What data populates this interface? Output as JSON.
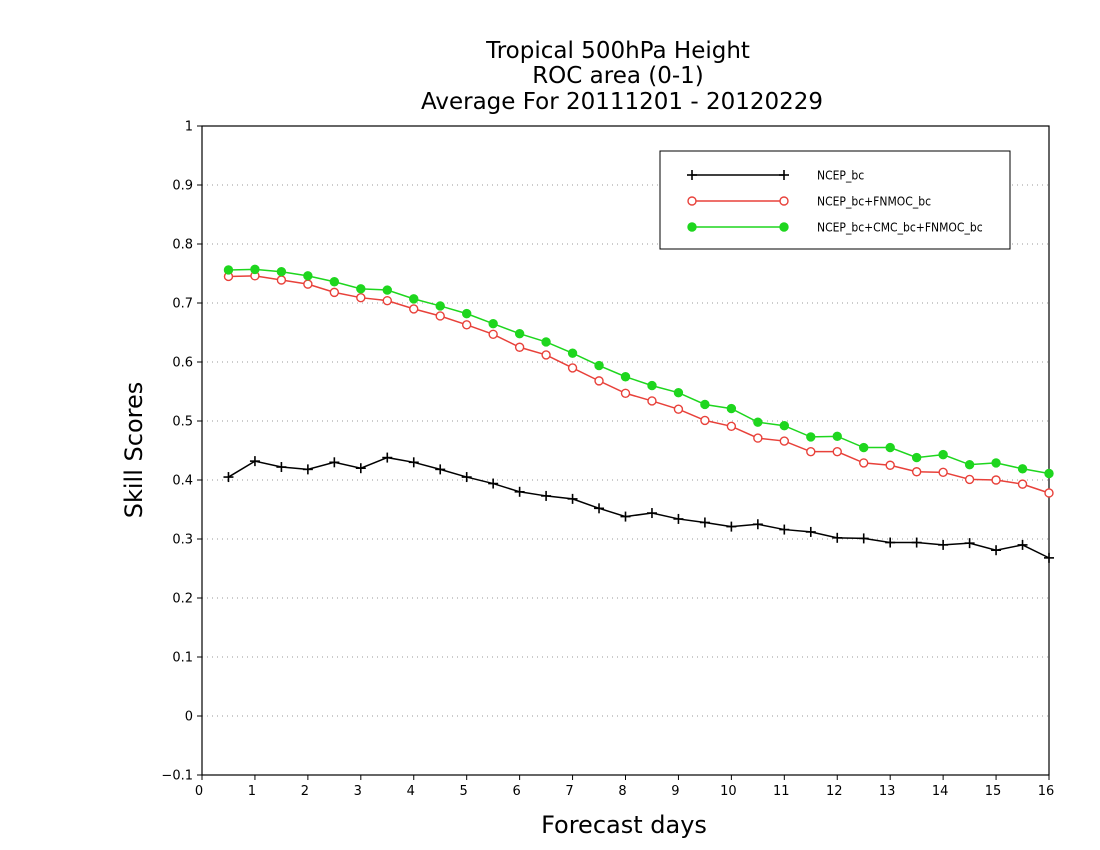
{
  "chart_data": {
    "type": "line",
    "title": [
      "Tropical 500hPa Height",
      "ROC area (0-1)",
      "Average For 20111201 - 20120229"
    ],
    "xlabel": "Forecast days",
    "ylabel": "Skill Scores",
    "xlim": [
      0,
      16
    ],
    "ylim": [
      -0.1,
      1
    ],
    "xticks": [
      0,
      1,
      2,
      3,
      4,
      5,
      6,
      7,
      8,
      9,
      10,
      11,
      12,
      13,
      14,
      15,
      16
    ],
    "yticks": [
      -0.1,
      0,
      0.1,
      0.2,
      0.3,
      0.4,
      0.5,
      0.6,
      0.7,
      0.8,
      0.9,
      1
    ],
    "ytick_labels": [
      "−0.1",
      "0",
      "0.1",
      "0.2",
      "0.3",
      "0.4",
      "0.5",
      "0.6",
      "0.7",
      "0.8",
      "0.9",
      "1"
    ],
    "grid": true,
    "legend_position": "top-right",
    "x": [
      0.5,
      1,
      1.5,
      2,
      2.5,
      3,
      3.5,
      4,
      4.5,
      5,
      5.5,
      6,
      6.5,
      7,
      7.5,
      8,
      8.5,
      9,
      9.5,
      10,
      10.5,
      11,
      11.5,
      12,
      12.5,
      13,
      13.5,
      14,
      14.5,
      15,
      15.5,
      16
    ],
    "series": [
      {
        "name": "NCEP_bc",
        "color": "#000000",
        "marker": "plus",
        "values": [
          0.405,
          0.432,
          0.422,
          0.418,
          0.43,
          0.42,
          0.438,
          0.43,
          0.418,
          0.405,
          0.394,
          0.38,
          0.373,
          0.368,
          0.352,
          0.338,
          0.344,
          0.334,
          0.328,
          0.321,
          0.325,
          0.316,
          0.312,
          0.302,
          0.301,
          0.294,
          0.294,
          0.29,
          0.293,
          0.281,
          0.29,
          0.268
        ]
      },
      {
        "name": "NCEP_bc+FNMOC_bc",
        "color": "#e8413a",
        "marker": "open-circle",
        "values": [
          0.745,
          0.746,
          0.739,
          0.732,
          0.718,
          0.709,
          0.704,
          0.69,
          0.678,
          0.663,
          0.647,
          0.625,
          0.612,
          0.59,
          0.568,
          0.547,
          0.534,
          0.52,
          0.501,
          0.491,
          0.471,
          0.466,
          0.448,
          0.448,
          0.429,
          0.425,
          0.414,
          0.413,
          0.401,
          0.4,
          0.393,
          0.378
        ]
      },
      {
        "name": "NCEP_bc+CMC_bc+FNMOC_bc",
        "color": "#1ed61e",
        "marker": "filled-circle",
        "values": [
          0.756,
          0.757,
          0.753,
          0.746,
          0.736,
          0.724,
          0.722,
          0.707,
          0.695,
          0.682,
          0.665,
          0.648,
          0.634,
          0.615,
          0.594,
          0.575,
          0.56,
          0.548,
          0.528,
          0.521,
          0.498,
          0.492,
          0.473,
          0.474,
          0.455,
          0.455,
          0.438,
          0.443,
          0.426,
          0.429,
          0.419,
          0.411
        ]
      }
    ]
  }
}
